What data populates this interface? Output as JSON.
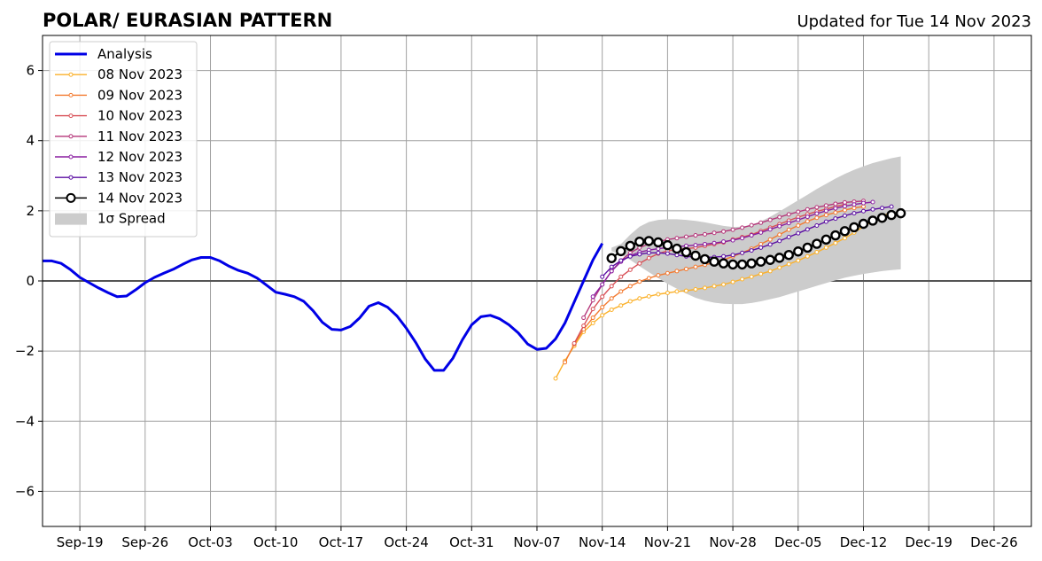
{
  "chart_data": {
    "type": "line",
    "title": "POLAR/ EURASIAN  PATTERN",
    "subtitle": "Updated for Tue 14 Nov 2023",
    "xlabel": "",
    "ylabel": "",
    "x_tick_labels": [
      "Sep-19",
      "Sep-26",
      "Oct-03",
      "Oct-10",
      "Oct-17",
      "Oct-24",
      "Oct-31",
      "Nov-07",
      "Nov-14",
      "Nov-21",
      "Nov-28",
      "Dec-05",
      "Dec-12",
      "Dec-19",
      "Dec-26"
    ],
    "x_tick_dates": [
      "2023-09-19",
      "2023-09-26",
      "2023-10-03",
      "2023-10-10",
      "2023-10-17",
      "2023-10-24",
      "2023-10-31",
      "2023-11-07",
      "2023-11-14",
      "2023-11-21",
      "2023-11-28",
      "2023-12-05",
      "2023-12-12",
      "2023-12-19",
      "2023-12-26"
    ],
    "xlim": [
      "2023-09-15",
      "2023-12-30"
    ],
    "y_ticks": [
      -6,
      -4,
      -2,
      0,
      2,
      4,
      6
    ],
    "y_tick_labels": [
      "−6",
      "−4",
      "−2",
      "0",
      "2",
      "4",
      "6"
    ],
    "ylim": [
      -7,
      7
    ],
    "grid": true,
    "legend_position": "top-left",
    "zero_line": true,
    "analysis": {
      "name": "Analysis",
      "color": "#0000e6",
      "points": [
        [
          "2023-09-15",
          0.57
        ],
        [
          "2023-09-16",
          0.57
        ],
        [
          "2023-09-17",
          0.5
        ],
        [
          "2023-09-18",
          0.32
        ],
        [
          "2023-09-19",
          0.1
        ],
        [
          "2023-09-20",
          -0.05
        ],
        [
          "2023-09-21",
          -0.2
        ],
        [
          "2023-09-22",
          -0.33
        ],
        [
          "2023-09-23",
          -0.45
        ],
        [
          "2023-09-24",
          -0.43
        ],
        [
          "2023-09-25",
          -0.25
        ],
        [
          "2023-09-26",
          -0.05
        ],
        [
          "2023-09-27",
          0.1
        ],
        [
          "2023-09-28",
          0.22
        ],
        [
          "2023-09-29",
          0.33
        ],
        [
          "2023-09-30",
          0.47
        ],
        [
          "2023-10-01",
          0.6
        ],
        [
          "2023-10-02",
          0.67
        ],
        [
          "2023-10-03",
          0.67
        ],
        [
          "2023-10-04",
          0.57
        ],
        [
          "2023-10-05",
          0.42
        ],
        [
          "2023-10-06",
          0.3
        ],
        [
          "2023-10-07",
          0.22
        ],
        [
          "2023-10-08",
          0.08
        ],
        [
          "2023-10-09",
          -0.12
        ],
        [
          "2023-10-10",
          -0.32
        ],
        [
          "2023-10-11",
          -0.38
        ],
        [
          "2023-10-12",
          -0.45
        ],
        [
          "2023-10-13",
          -0.58
        ],
        [
          "2023-10-14",
          -0.85
        ],
        [
          "2023-10-15",
          -1.18
        ],
        [
          "2023-10-16",
          -1.38
        ],
        [
          "2023-10-17",
          -1.4
        ],
        [
          "2023-10-18",
          -1.3
        ],
        [
          "2023-10-19",
          -1.05
        ],
        [
          "2023-10-20",
          -0.72
        ],
        [
          "2023-10-21",
          -0.62
        ],
        [
          "2023-10-22",
          -0.75
        ],
        [
          "2023-10-23",
          -1.0
        ],
        [
          "2023-10-24",
          -1.35
        ],
        [
          "2023-10-25",
          -1.75
        ],
        [
          "2023-10-26",
          -2.22
        ],
        [
          "2023-10-27",
          -2.55
        ],
        [
          "2023-10-28",
          -2.55
        ],
        [
          "2023-10-29",
          -2.2
        ],
        [
          "2023-10-30",
          -1.68
        ],
        [
          "2023-10-31",
          -1.25
        ],
        [
          "2023-11-01",
          -1.02
        ],
        [
          "2023-11-02",
          -0.98
        ],
        [
          "2023-11-03",
          -1.08
        ],
        [
          "2023-11-04",
          -1.25
        ],
        [
          "2023-11-05",
          -1.48
        ],
        [
          "2023-11-06",
          -1.8
        ],
        [
          "2023-11-07",
          -1.95
        ],
        [
          "2023-11-08",
          -1.92
        ],
        [
          "2023-11-09",
          -1.65
        ],
        [
          "2023-11-10",
          -1.2
        ],
        [
          "2023-11-11",
          -0.6
        ],
        [
          "2023-11-12",
          0.0
        ],
        [
          "2023-11-13",
          0.6
        ],
        [
          "2023-11-14",
          1.07
        ]
      ]
    },
    "series": [
      {
        "name": "08 Nov 2023",
        "color": "#fbb12a",
        "start": "2023-11-09",
        "values": [
          -2.78,
          -2.28,
          -1.85,
          -1.45,
          -1.2,
          -0.98,
          -0.82,
          -0.7,
          -0.58,
          -0.5,
          -0.44,
          -0.38,
          -0.34,
          -0.3,
          -0.28,
          -0.24,
          -0.2,
          -0.15,
          -0.1,
          -0.03,
          0.05,
          0.12,
          0.2,
          0.28,
          0.38,
          0.48,
          0.58,
          0.7,
          0.82,
          0.95,
          1.08,
          1.22,
          1.38,
          1.55,
          1.7,
          1.85,
          1.95
        ]
      },
      {
        "name": "09 Nov 2023",
        "color": "#f37a30",
        "start": "2023-11-10",
        "values": [
          -2.32,
          -1.8,
          -1.38,
          -1.05,
          -0.75,
          -0.5,
          -0.3,
          -0.15,
          -0.02,
          0.08,
          0.16,
          0.22,
          0.28,
          0.34,
          0.4,
          0.46,
          0.52,
          0.6,
          0.7,
          0.8,
          0.92,
          1.05,
          1.18,
          1.32,
          1.46,
          1.58,
          1.7,
          1.8,
          1.88,
          1.95,
          2.02,
          2.08,
          2.12
        ]
      },
      {
        "name": "10 Nov 2023",
        "color": "#d84f56",
        "start": "2023-11-11",
        "values": [
          -1.78,
          -1.28,
          -0.8,
          -0.45,
          -0.15,
          0.12,
          0.32,
          0.5,
          0.65,
          0.78,
          0.86,
          0.9,
          0.92,
          0.95,
          1.0,
          1.05,
          1.1,
          1.18,
          1.25,
          1.32,
          1.42,
          1.52,
          1.62,
          1.72,
          1.82,
          1.9,
          1.98,
          2.05,
          2.12,
          2.18
        ]
      },
      {
        "name": "11 Nov 2023",
        "color": "#b5367a",
        "start": "2023-11-12",
        "values": [
          -1.05,
          -0.55,
          -0.1,
          0.28,
          0.58,
          0.8,
          0.95,
          1.05,
          1.12,
          1.18,
          1.22,
          1.26,
          1.3,
          1.33,
          1.37,
          1.41,
          1.46,
          1.52,
          1.59,
          1.66,
          1.74,
          1.82,
          1.9,
          1.97,
          2.04,
          2.1,
          2.15,
          2.2,
          2.24,
          2.26,
          2.28
        ]
      },
      {
        "name": "12 Nov 2023",
        "color": "#8a1fa1",
        "start": "2023-11-13",
        "values": [
          -0.45,
          -0.1,
          0.28,
          0.55,
          0.72,
          0.82,
          0.88,
          0.92,
          0.95,
          0.98,
          1.0,
          1.02,
          1.05,
          1.08,
          1.12,
          1.16,
          1.22,
          1.3,
          1.38,
          1.47,
          1.56,
          1.65,
          1.74,
          1.83,
          1.92,
          2.0,
          2.07,
          2.13,
          2.18,
          2.22,
          2.25
        ]
      },
      {
        "name": "13 Nov 2023",
        "color": "#5c0fa3",
        "start": "2023-11-14",
        "values": [
          0.12,
          0.4,
          0.58,
          0.7,
          0.76,
          0.8,
          0.8,
          0.78,
          0.74,
          0.7,
          0.68,
          0.67,
          0.68,
          0.7,
          0.74,
          0.8,
          0.87,
          0.95,
          1.04,
          1.14,
          1.25,
          1.36,
          1.47,
          1.58,
          1.69,
          1.78,
          1.86,
          1.93,
          1.99,
          2.04,
          2.08,
          2.12
        ]
      }
    ],
    "forecast": {
      "name": "14 Nov 2023",
      "color": "#000000",
      "start": "2023-11-15",
      "values": [
        0.65,
        0.85,
        1.0,
        1.12,
        1.14,
        1.1,
        1.02,
        0.92,
        0.82,
        0.72,
        0.62,
        0.55,
        0.5,
        0.47,
        0.47,
        0.5,
        0.55,
        0.6,
        0.66,
        0.74,
        0.84,
        0.95,
        1.06,
        1.18,
        1.3,
        1.42,
        1.53,
        1.63,
        1.72,
        1.8,
        1.88,
        1.93
      ]
    },
    "spread": {
      "name": "1σ Spread",
      "color": "#cccccc",
      "start": "2023-11-15",
      "upper": [
        0.95,
        1.05,
        1.32,
        1.55,
        1.68,
        1.74,
        1.76,
        1.76,
        1.74,
        1.71,
        1.67,
        1.62,
        1.57,
        1.54,
        1.55,
        1.6,
        1.7,
        1.83,
        1.98,
        2.14,
        2.3,
        2.46,
        2.62,
        2.77,
        2.92,
        3.05,
        3.17,
        3.27,
        3.36,
        3.43,
        3.5,
        3.55
      ],
      "lower": [
        0.85,
        0.75,
        0.6,
        0.42,
        0.25,
        0.08,
        -0.08,
        -0.22,
        -0.36,
        -0.48,
        -0.56,
        -0.62,
        -0.65,
        -0.66,
        -0.66,
        -0.63,
        -0.58,
        -0.52,
        -0.46,
        -0.38,
        -0.3,
        -0.22,
        -0.14,
        -0.06,
        0.02,
        0.09,
        0.15,
        0.2,
        0.24,
        0.28,
        0.31,
        0.33
      ]
    }
  }
}
